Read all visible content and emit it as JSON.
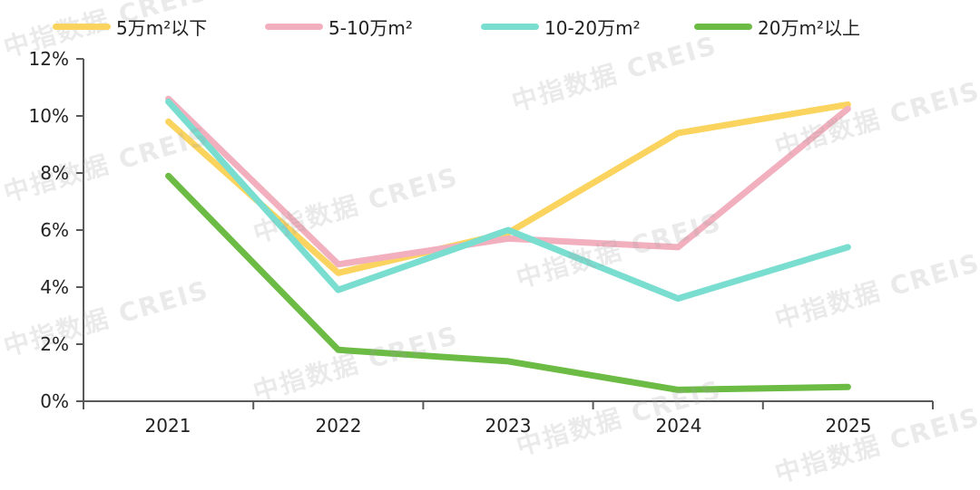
{
  "chart_data": {
    "type": "line",
    "title": "",
    "xlabel": "",
    "ylabel": "",
    "categories": [
      "2021",
      "2022",
      "2023",
      "2024",
      "2025"
    ],
    "ylim": [
      0,
      12
    ],
    "yticks": [
      "0%",
      "2%",
      "4%",
      "6%",
      "8%",
      "10%",
      "12%"
    ],
    "grid": false,
    "legend_position": "top",
    "series": [
      {
        "name": "5万m²以下",
        "color": "#FAD45E",
        "values": [
          9.8,
          4.5,
          5.9,
          9.4,
          10.4
        ]
      },
      {
        "name": "5-10万m²",
        "color": "#F2B0BF",
        "values": [
          10.6,
          4.8,
          5.7,
          5.4,
          10.25
        ]
      },
      {
        "name": "10-20万m²",
        "color": "#79DDD0",
        "values": [
          10.5,
          3.9,
          6.0,
          3.6,
          5.4
        ]
      },
      {
        "name": "20万m²以上",
        "color": "#6CBB44",
        "values": [
          7.9,
          1.8,
          1.4,
          0.4,
          0.5
        ]
      }
    ]
  },
  "legend": {
    "items": [
      {
        "label": "5万m²以下",
        "color": "#FAD45E"
      },
      {
        "label": "5-10万m²",
        "color": "#F2B0BF"
      },
      {
        "label": "10-20万m²",
        "color": "#79DDD0"
      },
      {
        "label": "20万m²以上",
        "color": "#6CBB44"
      }
    ]
  },
  "axes": {
    "y_labels": [
      "12%",
      "10%",
      "8%",
      "6%",
      "4%",
      "2%",
      "0%"
    ],
    "x_labels": [
      "2021",
      "2022",
      "2023",
      "2024",
      "2025"
    ]
  },
  "watermark": {
    "text": "中指数据 CREIS"
  }
}
